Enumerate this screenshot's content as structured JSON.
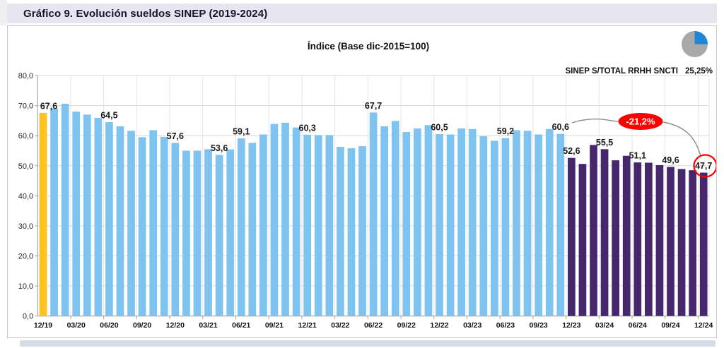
{
  "header": {
    "title": "Gráfico 9. Evolución sueldos SINEP (2019-2024)"
  },
  "kpi": {
    "label": "SINEP S/TOTAL RRHH SNCTI",
    "value": "25,25%",
    "pie_percent": 25.25,
    "pie_color": "#1d86d8",
    "pie_rest_color": "#a9a9a9"
  },
  "annotation": {
    "drop_text": "-21,2%",
    "oval_color": "#fe0000",
    "circled_label": "47,7"
  },
  "chart_data": {
    "type": "bar",
    "title": "Índice (Base dic-2015=100)",
    "ylim": [
      0,
      80
    ],
    "y_ticks": [
      "80,0",
      "70,0",
      "60,0",
      "50,0",
      "40,0",
      "30,0",
      "20,0",
      "10,0",
      "0,0"
    ],
    "x_tick_every": 3,
    "grid": true,
    "legend": false,
    "x": [
      "12/19",
      "01/20",
      "02/20",
      "03/20",
      "04/20",
      "05/20",
      "06/20",
      "07/20",
      "08/20",
      "09/20",
      "10/20",
      "11/20",
      "12/20",
      "01/21",
      "02/21",
      "03/21",
      "04/21",
      "05/21",
      "06/21",
      "07/21",
      "08/21",
      "09/21",
      "10/21",
      "11/21",
      "12/21",
      "01/22",
      "02/22",
      "03/22",
      "04/22",
      "05/22",
      "06/22",
      "07/22",
      "08/22",
      "09/22",
      "10/22",
      "11/22",
      "12/22",
      "01/23",
      "02/23",
      "03/23",
      "04/23",
      "05/23",
      "06/23",
      "07/23",
      "08/23",
      "09/23",
      "10/23",
      "11/23",
      "12/23",
      "01/24",
      "02/24",
      "03/24",
      "04/24",
      "05/24",
      "06/24",
      "07/24",
      "08/24",
      "09/24",
      "10/24",
      "11/24",
      "12/24"
    ],
    "values": [
      67.6,
      69.0,
      70.6,
      68.0,
      67.0,
      65.9,
      64.5,
      63.1,
      61.6,
      59.5,
      61.8,
      59.6,
      57.6,
      55.0,
      55.0,
      55.5,
      53.6,
      55.4,
      59.1,
      57.6,
      60.4,
      63.9,
      64.3,
      62.7,
      60.3,
      60.2,
      60.2,
      56.3,
      55.8,
      56.5,
      67.7,
      63.1,
      64.9,
      61.2,
      62.4,
      63.5,
      60.5,
      60.4,
      62.4,
      62.2,
      59.8,
      58.3,
      59.2,
      61.8,
      61.6,
      60.4,
      62.2,
      60.6,
      52.6,
      50.6,
      56.9,
      55.5,
      51.8,
      53.3,
      51.1,
      51.0,
      50.2,
      49.6,
      48.9,
      48.5,
      47.7
    ],
    "point_labels": {
      "0": "67,6",
      "6": "64,5",
      "12": "57,6",
      "16": "53,6",
      "18": "59,1",
      "24": "60,3",
      "30": "67,7",
      "36": "60,5",
      "42": "59,2",
      "47": "60,6",
      "48": "52,6",
      "51": "55,5",
      "54": "51,1",
      "57": "49,6",
      "60": "47,7"
    },
    "segments": [
      {
        "name": "baseline-dic19",
        "from": 0,
        "to": 0,
        "color": "#ffc221"
      },
      {
        "name": "sinep-indice",
        "from": 1,
        "to": 47,
        "color": "#7fc3f1"
      },
      {
        "name": "periodo-2024",
        "from": 48,
        "to": 60,
        "color": "#46276e"
      }
    ],
    "colors": {
      "gridline": "#d9d9d9",
      "vgridline": "#e4e4e4",
      "axis": "#a6a6a6",
      "label": "#1a1a1a",
      "connector": "#8c8c8c"
    }
  }
}
